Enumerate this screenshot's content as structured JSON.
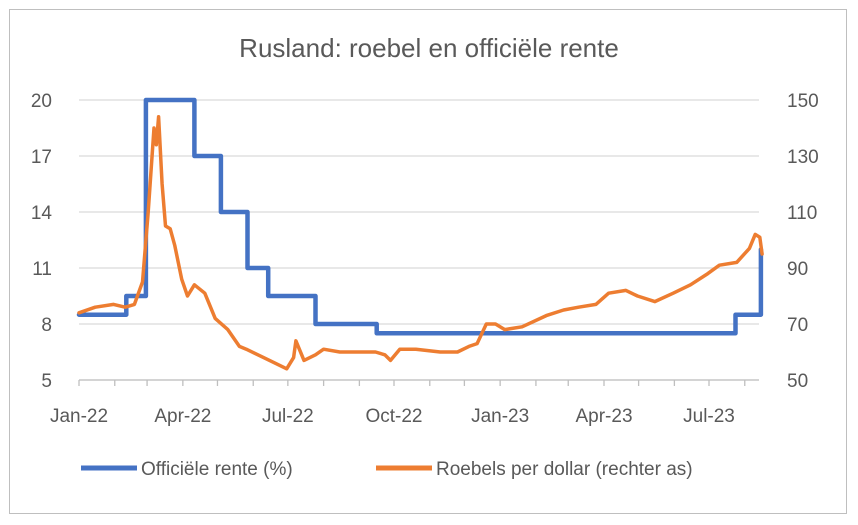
{
  "chart_data": {
    "type": "line",
    "title": "Rusland: roebel en officiële rente",
    "x_ticks": [
      "Jan-22",
      "Apr-22",
      "Jul-22",
      "Oct-22",
      "Jan-23",
      "Apr-23",
      "Jul-23"
    ],
    "y_left": {
      "ticks": [
        "20",
        "17",
        "14",
        "11",
        "8",
        "5"
      ],
      "ylim": [
        5,
        20
      ]
    },
    "y_right": {
      "ticks": [
        "150",
        "130",
        "110",
        "90",
        "70",
        "50"
      ],
      "ylim": [
        50,
        150
      ]
    },
    "grid": true,
    "legend_position": "bottom",
    "series": [
      {
        "name": "Officiële rente (%)",
        "axis": "left",
        "color": "#4472c4",
        "step": true,
        "points": [
          [
            "2022-01-01",
            8.5
          ],
          [
            "2022-02-11",
            9.5
          ],
          [
            "2022-02-28",
            20
          ],
          [
            "2022-04-11",
            17
          ],
          [
            "2022-05-04",
            14
          ],
          [
            "2022-05-27",
            11
          ],
          [
            "2022-06-14",
            9.5
          ],
          [
            "2022-07-25",
            8
          ],
          [
            "2022-09-16",
            7.5
          ],
          [
            "2023-07-24",
            8.5
          ],
          [
            "2023-08-15",
            12
          ]
        ]
      },
      {
        "name": "Roebels per dollar (rechter as)",
        "axis": "right",
        "color": "#ed7d31",
        "step": false,
        "points": [
          [
            "2022-01-01",
            74
          ],
          [
            "2022-01-15",
            76
          ],
          [
            "2022-01-31",
            77
          ],
          [
            "2022-02-10",
            76
          ],
          [
            "2022-02-18",
            77
          ],
          [
            "2022-02-25",
            85
          ],
          [
            "2022-03-02",
            110
          ],
          [
            "2022-03-07",
            140
          ],
          [
            "2022-03-09",
            134
          ],
          [
            "2022-03-11",
            144
          ],
          [
            "2022-03-14",
            120
          ],
          [
            "2022-03-17",
            105
          ],
          [
            "2022-03-21",
            104
          ],
          [
            "2022-03-25",
            98
          ],
          [
            "2022-03-31",
            86
          ],
          [
            "2022-04-05",
            80
          ],
          [
            "2022-04-11",
            84
          ],
          [
            "2022-04-20",
            81
          ],
          [
            "2022-04-29",
            72
          ],
          [
            "2022-05-10",
            68
          ],
          [
            "2022-05-20",
            62
          ],
          [
            "2022-05-26",
            61
          ],
          [
            "2022-06-10",
            58
          ],
          [
            "2022-06-20",
            56
          ],
          [
            "2022-06-30",
            54
          ],
          [
            "2022-07-06",
            58
          ],
          [
            "2022-07-08",
            64
          ],
          [
            "2022-07-15",
            57
          ],
          [
            "2022-07-25",
            59
          ],
          [
            "2022-08-01",
            61
          ],
          [
            "2022-08-15",
            60
          ],
          [
            "2022-09-01",
            60
          ],
          [
            "2022-09-15",
            60
          ],
          [
            "2022-09-23",
            59
          ],
          [
            "2022-09-28",
            57
          ],
          [
            "2022-10-06",
            61
          ],
          [
            "2022-10-20",
            61
          ],
          [
            "2022-11-10",
            60
          ],
          [
            "2022-11-25",
            60
          ],
          [
            "2022-12-05",
            62
          ],
          [
            "2022-12-12",
            63
          ],
          [
            "2022-12-20",
            70
          ],
          [
            "2022-12-28",
            70
          ],
          [
            "2023-01-05",
            68
          ],
          [
            "2023-01-20",
            69
          ],
          [
            "2023-02-10",
            73
          ],
          [
            "2023-02-25",
            75
          ],
          [
            "2023-03-10",
            76
          ],
          [
            "2023-03-25",
            77
          ],
          [
            "2023-04-05",
            81
          ],
          [
            "2023-04-20",
            82
          ],
          [
            "2023-04-30",
            80
          ],
          [
            "2023-05-15",
            78
          ],
          [
            "2023-05-31",
            81
          ],
          [
            "2023-06-15",
            84
          ],
          [
            "2023-06-30",
            88
          ],
          [
            "2023-07-10",
            91
          ],
          [
            "2023-07-25",
            92
          ],
          [
            "2023-08-05",
            97
          ],
          [
            "2023-08-10",
            102
          ],
          [
            "2023-08-14",
            101
          ],
          [
            "2023-08-16",
            95
          ]
        ]
      }
    ]
  }
}
